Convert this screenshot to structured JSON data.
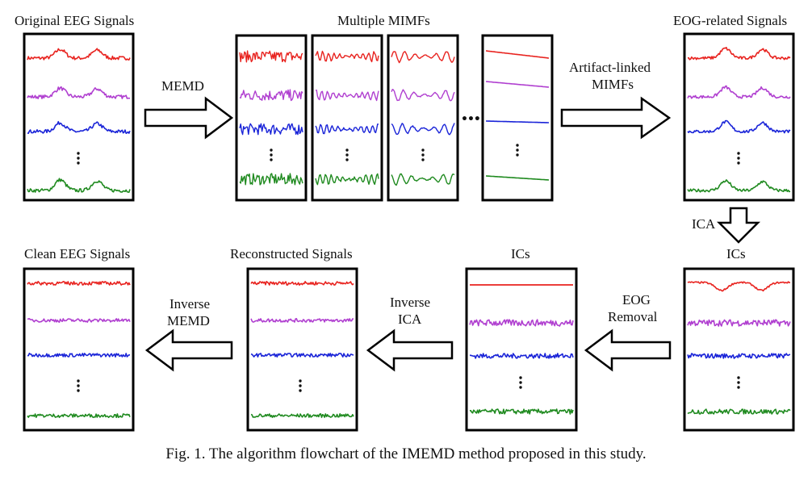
{
  "labels": {
    "original": "Original  EEG Signals",
    "mimfs": "Multiple MIMFs",
    "eog_related": "EOG-related  Signals",
    "ics_right": "ICs",
    "ics_mid": "ICs",
    "reconstructed": "Reconstructed  Signals",
    "clean": "Clean EEG Signals"
  },
  "arrows": {
    "memd": "MEMD",
    "artifact_line1": "Artifact-linked",
    "artifact_line2": "MIMFs",
    "ica": "ICA",
    "eog_line1": "EOG",
    "eog_line2": "Removal",
    "inv_ica_line1": "Inverse",
    "inv_ica_line2": "ICA",
    "inv_memd_line1": "Inverse",
    "inv_memd_line2": "MEMD"
  },
  "ellipsis": "•••",
  "caption": "Fig. 1. The algorithm flowchart of the IMEMD method proposed in this study.",
  "colors": {
    "red": "#e8231f",
    "purple": "#b03fd0",
    "blue": "#1a24d8",
    "green": "#1f8a1f",
    "border": "#000000"
  }
}
